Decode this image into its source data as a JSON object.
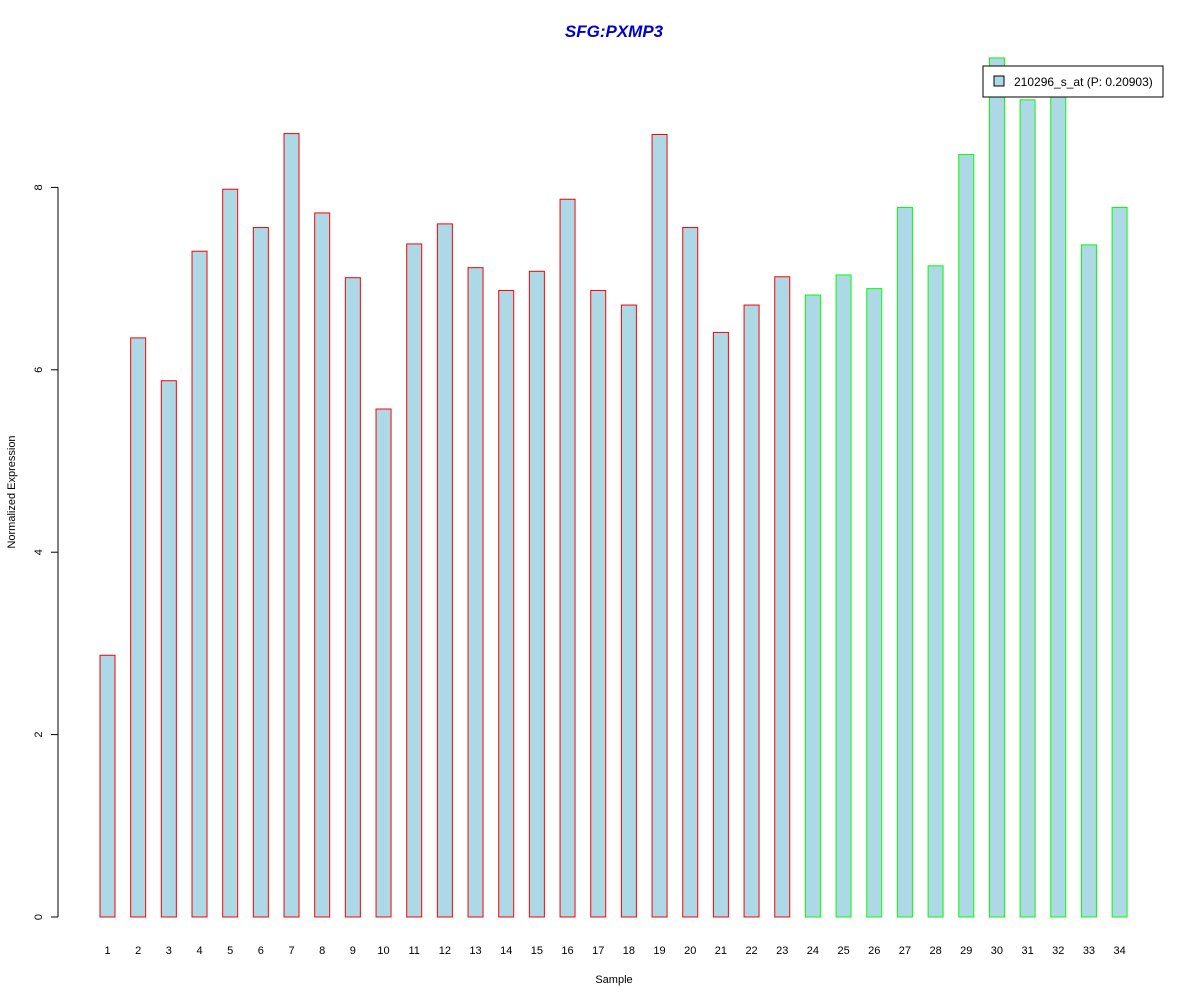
{
  "chart_data": {
    "type": "bar",
    "title": "SFG:PXMP3",
    "xlabel": "Sample",
    "ylabel": "Normalized Expression",
    "ylim": [
      0,
      9.4
    ],
    "yticks": [
      0,
      2,
      4,
      6,
      8
    ],
    "categories": [
      "1",
      "2",
      "3",
      "4",
      "5",
      "6",
      "7",
      "8",
      "9",
      "10",
      "11",
      "12",
      "13",
      "14",
      "15",
      "16",
      "17",
      "18",
      "19",
      "20",
      "21",
      "22",
      "23",
      "24",
      "25",
      "26",
      "27",
      "28",
      "29",
      "30",
      "31",
      "32",
      "33",
      "34"
    ],
    "series": [
      {
        "name": "210296_s_at (P: 0.20903)",
        "values": [
          2.87,
          6.35,
          5.88,
          7.3,
          7.98,
          7.56,
          8.59,
          7.72,
          7.01,
          5.57,
          7.38,
          7.6,
          7.12,
          6.87,
          7.08,
          7.87,
          6.87,
          6.71,
          8.58,
          7.56,
          6.41,
          6.71,
          7.02,
          6.82,
          7.04,
          6.89,
          7.78,
          7.14,
          8.36,
          9.42,
          8.96,
          9.1,
          7.37,
          7.78
        ]
      }
    ],
    "group1_count": 23,
    "legend_position": "top-right",
    "grid": false,
    "colors": {
      "fill": "#ADD8E6",
      "border_group1": "#FF0000",
      "border_group2": "#00FF00",
      "title": "#0000CD",
      "axis": "#000000"
    }
  }
}
